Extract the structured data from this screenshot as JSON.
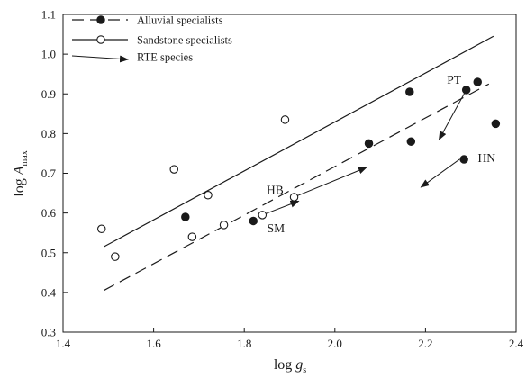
{
  "chart_data": {
    "type": "scatter",
    "xlabel": {
      "prefix": "log ",
      "var": "g",
      "sub": "s"
    },
    "ylabel": {
      "prefix": "log ",
      "var": "A",
      "sub": "max"
    },
    "xlim": [
      1.4,
      2.4
    ],
    "ylim": [
      0.3,
      1.1
    ],
    "x_ticks": [
      "1.4",
      "1.6",
      "1.8",
      "2.0",
      "2.2",
      "2.4"
    ],
    "y_ticks": [
      "0.3",
      "0.4",
      "0.5",
      "0.6",
      "0.7",
      "0.8",
      "0.9",
      "1.0",
      "1.1"
    ],
    "legend": {
      "placement": "top-left",
      "entries": [
        {
          "label": "Alluvial specialists",
          "symbol": "filled-circle",
          "line": "dashed"
        },
        {
          "label": "Sandstone specialists",
          "symbol": "open-circle",
          "line": "solid"
        },
        {
          "label": "RTE species",
          "symbol": "arrow",
          "line": "none"
        }
      ]
    },
    "series": [
      {
        "name": "Alluvial specialists",
        "marker": "filled",
        "points": [
          {
            "x": 1.67,
            "y": 0.59
          },
          {
            "x": 1.82,
            "y": 0.58
          },
          {
            "x": 2.075,
            "y": 0.775
          },
          {
            "x": 2.165,
            "y": 0.905
          },
          {
            "x": 2.168,
            "y": 0.78
          },
          {
            "x": 2.285,
            "y": 0.735
          },
          {
            "x": 2.29,
            "y": 0.91
          },
          {
            "x": 2.315,
            "y": 0.93
          },
          {
            "x": 2.355,
            "y": 0.825
          }
        ],
        "fit": {
          "style": "dashed",
          "from": {
            "x": 1.49,
            "y": 0.405
          },
          "to": {
            "x": 2.34,
            "y": 0.925
          }
        }
      },
      {
        "name": "Sandstone specialists",
        "marker": "open",
        "points": [
          {
            "x": 1.485,
            "y": 0.56
          },
          {
            "x": 1.515,
            "y": 0.49
          },
          {
            "x": 1.645,
            "y": 0.71
          },
          {
            "x": 1.685,
            "y": 0.54
          },
          {
            "x": 1.72,
            "y": 0.645
          },
          {
            "x": 1.755,
            "y": 0.57
          },
          {
            "x": 1.84,
            "y": 0.595
          },
          {
            "x": 1.89,
            "y": 0.835
          },
          {
            "x": 1.91,
            "y": 0.64
          }
        ],
        "fit": {
          "style": "solid",
          "from": {
            "x": 1.49,
            "y": 0.515
          },
          "to": {
            "x": 2.35,
            "y": 1.045
          }
        }
      }
    ],
    "arrows": [
      {
        "label": "HB",
        "from": {
          "x": 1.91,
          "y": 0.64
        },
        "to": {
          "x": 2.07,
          "y": 0.715
        }
      },
      {
        "label": "SM",
        "from": {
          "x": 1.84,
          "y": 0.595
        },
        "to": {
          "x": 1.92,
          "y": 0.63
        }
      },
      {
        "label": "PT",
        "from": {
          "x": 2.29,
          "y": 0.91
        },
        "to": {
          "x": 2.23,
          "y": 0.785
        }
      },
      {
        "label": "HN",
        "from": {
          "x": 2.275,
          "y": 0.735
        },
        "to": {
          "x": 2.19,
          "y": 0.665
        }
      }
    ],
    "point_labels": [
      {
        "text": "HB",
        "x": 1.868,
        "y": 0.648
      },
      {
        "text": "SM",
        "x": 1.87,
        "y": 0.552
      },
      {
        "text": "PT",
        "x": 2.263,
        "y": 0.925
      },
      {
        "text": "HN",
        "x": 2.335,
        "y": 0.728
      }
    ],
    "grid": false
  }
}
